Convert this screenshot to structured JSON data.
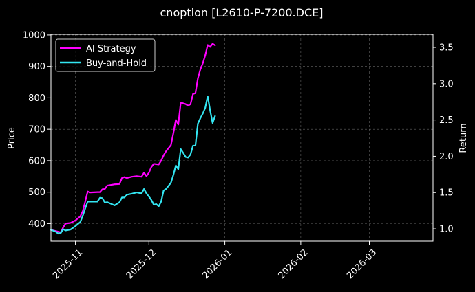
{
  "chart_data": {
    "type": "line",
    "title": "cnoption [L2610-P-7200.DCE]",
    "ylabel": "Price",
    "y2label": "Return",
    "grid": true,
    "legend_position": "top-left",
    "x_range": [
      "2025-10-22",
      "2026-03-27"
    ],
    "ylim": [
      344,
      1002
    ],
    "y2lim": [
      0.83,
      3.68
    ],
    "x_ticks": [
      {
        "date": "2025-11-01",
        "label": "2025-11"
      },
      {
        "date": "2025-12-01",
        "label": "2025-12"
      },
      {
        "date": "2026-01-01",
        "label": "2026-01"
      },
      {
        "date": "2026-02-01",
        "label": "2026-02"
      },
      {
        "date": "2026-03-01",
        "label": "2026-03"
      }
    ],
    "y_ticks": [
      400,
      500,
      600,
      700,
      800,
      900,
      1000
    ],
    "y2_ticks": [
      1.0,
      1.5,
      2.0,
      2.5,
      3.0,
      3.5
    ],
    "series": [
      {
        "name": "AI Strategy",
        "color": "#ff00ff",
        "axis": "left",
        "points": [
          [
            "2025-10-22",
            380
          ],
          [
            "2025-10-24",
            376
          ],
          [
            "2025-10-26",
            372
          ],
          [
            "2025-10-27",
            388
          ],
          [
            "2025-10-28",
            400
          ],
          [
            "2025-10-30",
            402
          ],
          [
            "2025-11-01",
            410
          ],
          [
            "2025-11-03",
            423
          ],
          [
            "2025-11-04",
            440
          ],
          [
            "2025-11-05",
            470
          ],
          [
            "2025-11-06",
            502
          ],
          [
            "2025-11-07",
            499
          ],
          [
            "2025-11-10",
            500
          ],
          [
            "2025-11-11",
            500
          ],
          [
            "2025-11-12",
            509
          ],
          [
            "2025-11-13",
            510
          ],
          [
            "2025-11-14",
            521
          ],
          [
            "2025-11-17",
            525
          ],
          [
            "2025-11-19",
            526
          ],
          [
            "2025-11-20",
            545
          ],
          [
            "2025-11-21",
            548
          ],
          [
            "2025-11-22",
            545
          ],
          [
            "2025-11-24",
            549
          ],
          [
            "2025-11-26",
            551
          ],
          [
            "2025-11-28",
            549
          ],
          [
            "2025-11-29",
            562
          ],
          [
            "2025-11-30",
            551
          ],
          [
            "2025-12-01",
            562
          ],
          [
            "2025-12-02",
            580
          ],
          [
            "2025-12-03",
            590
          ],
          [
            "2025-12-05",
            588
          ],
          [
            "2025-12-06",
            600
          ],
          [
            "2025-12-07",
            617
          ],
          [
            "2025-12-08",
            630
          ],
          [
            "2025-12-10",
            650
          ],
          [
            "2025-12-11",
            688
          ],
          [
            "2025-12-12",
            730
          ],
          [
            "2025-12-13",
            715
          ],
          [
            "2025-12-14",
            785
          ],
          [
            "2025-12-16",
            780
          ],
          [
            "2025-12-17",
            775
          ],
          [
            "2025-12-18",
            780
          ],
          [
            "2025-12-19",
            812
          ],
          [
            "2025-12-20",
            815
          ],
          [
            "2025-12-21",
            862
          ],
          [
            "2025-12-22",
            890
          ],
          [
            "2025-12-23",
            910
          ],
          [
            "2025-12-24",
            935
          ],
          [
            "2025-12-25",
            968
          ],
          [
            "2025-12-26",
            962
          ],
          [
            "2025-12-27",
            972
          ],
          [
            "2025-12-28",
            967
          ]
        ]
      },
      {
        "name": "Buy-and-Hold",
        "color": "#33e6f2",
        "axis": "left",
        "points": [
          [
            "2025-10-22",
            380
          ],
          [
            "2025-10-24",
            374
          ],
          [
            "2025-10-25",
            368
          ],
          [
            "2025-10-26",
            370
          ],
          [
            "2025-10-27",
            382
          ],
          [
            "2025-10-28",
            378
          ],
          [
            "2025-10-30",
            381
          ],
          [
            "2025-11-01",
            392
          ],
          [
            "2025-11-03",
            405
          ],
          [
            "2025-11-04",
            425
          ],
          [
            "2025-11-05",
            448
          ],
          [
            "2025-11-06",
            470
          ],
          [
            "2025-11-08",
            470
          ],
          [
            "2025-11-10",
            470
          ],
          [
            "2025-11-11",
            482
          ],
          [
            "2025-11-12",
            481
          ],
          [
            "2025-11-13",
            467
          ],
          [
            "2025-11-14",
            468
          ],
          [
            "2025-11-17",
            458
          ],
          [
            "2025-11-19",
            468
          ],
          [
            "2025-11-20",
            483
          ],
          [
            "2025-11-21",
            483
          ],
          [
            "2025-11-22",
            492
          ],
          [
            "2025-11-24",
            495
          ],
          [
            "2025-11-26",
            499
          ],
          [
            "2025-11-28",
            496
          ],
          [
            "2025-11-29",
            510
          ],
          [
            "2025-11-30",
            496
          ],
          [
            "2025-12-01",
            486
          ],
          [
            "2025-12-02",
            475
          ],
          [
            "2025-12-03",
            460
          ],
          [
            "2025-12-04",
            462
          ],
          [
            "2025-12-05",
            455
          ],
          [
            "2025-12-06",
            470
          ],
          [
            "2025-12-07",
            505
          ],
          [
            "2025-12-08",
            510
          ],
          [
            "2025-12-10",
            530
          ],
          [
            "2025-12-11",
            555
          ],
          [
            "2025-12-12",
            585
          ],
          [
            "2025-12-13",
            573
          ],
          [
            "2025-12-14",
            637
          ],
          [
            "2025-12-15",
            625
          ],
          [
            "2025-12-16",
            612
          ],
          [
            "2025-12-17",
            610
          ],
          [
            "2025-12-18",
            620
          ],
          [
            "2025-12-19",
            648
          ],
          [
            "2025-12-20",
            648
          ],
          [
            "2025-12-21",
            718
          ],
          [
            "2025-12-22",
            735
          ],
          [
            "2025-12-23",
            750
          ],
          [
            "2025-12-24",
            768
          ],
          [
            "2025-12-25",
            805
          ],
          [
            "2025-12-26",
            760
          ],
          [
            "2025-12-27",
            720
          ],
          [
            "2025-12-28",
            742
          ]
        ]
      }
    ]
  }
}
